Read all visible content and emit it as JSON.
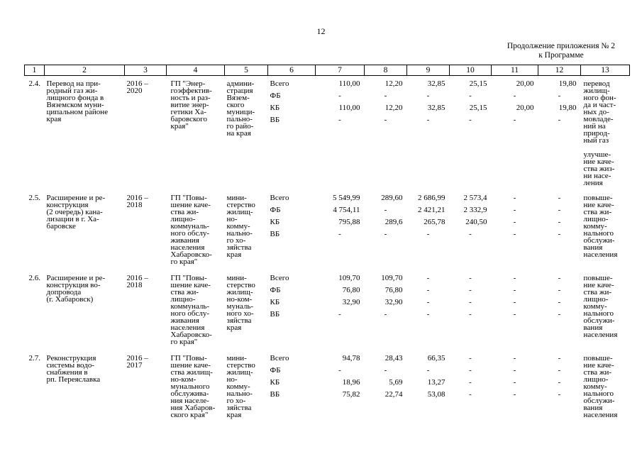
{
  "page": {
    "number": "12"
  },
  "continuation": {
    "line1": "Продолжение приложения № 2",
    "line2": "к Программе"
  },
  "headers": [
    "1",
    "2",
    "3",
    "4",
    "5",
    "6",
    "7",
    "8",
    "9",
    "10",
    "11",
    "12",
    "13"
  ],
  "rows": [
    {
      "num": "2.4.",
      "name": "Перевод на при-\nродный газ жи-\nлищного фонда в\nВяземском муни-\nципальном районе\nкрая",
      "period": "2016 –\n2020",
      "program": "ГП \"Энер-\nгоэффектив-\nность и раз-\nвитие энер-\nгетики Ха-\nбаровского\nкрая\"",
      "executor": "админи-\nстрация\nВязем-\nского\nмуници-\nпально-\nго райо-\nна края",
      "fin": [
        {
          "src": "Всего",
          "v7": "110,00",
          "v8": "12,20",
          "v9": "32,85",
          "v10": "25,15",
          "v11": "20,00",
          "v12": "19,80"
        },
        {
          "src": "ФБ",
          "v7": "-",
          "v8": "-",
          "v9": "-",
          "v10": "-",
          "v11": "-",
          "v12": "-"
        },
        {
          "src": "КБ",
          "v7": "110,00",
          "v8": "12,20",
          "v9": "32,85",
          "v10": "25,15",
          "v11": "20,00",
          "v12": "19,80"
        },
        {
          "src": "ВБ",
          "v7": "-",
          "v8": "-",
          "v9": "-",
          "v10": "-",
          "v11": "-",
          "v12": "-"
        }
      ],
      "result1": "перевод\nжилищ-\nного фон-\nда и част-\nных до-\nмовладе-\nний на\nприрод-\nный газ",
      "result2": "улучше-\nние каче-\nства жиз-\nни насе-\nления"
    },
    {
      "num": "2.5.",
      "name": "Расширение и ре-\nконструкция\n(2 очередь) кана-\nлизации в г. Ха-\nбаровске",
      "period": "2016 –\n2018",
      "program": "ГП \"Повы-\nшение каче-\nства жи-\nлищно-\nкоммуналь-\nного обслу-\nживания\nнаселения\nХабаровско-\nго края\"",
      "executor": "мини-\nстерство\nжилищ-\nно-\nкомму-\nнально-\nго хо-\nзяйства\nкрая",
      "fin": [
        {
          "src": "Всего",
          "v7": "5 549,99",
          "v8": "289,60",
          "v9": "2 686,99",
          "v10": "2 573,4",
          "v11": "-",
          "v12": "-"
        },
        {
          "src": "ФБ",
          "v7": "4 754,11",
          "v8": "-",
          "v9": "2 421,21",
          "v10": "2 332,9",
          "v11": "-",
          "v12": "-"
        },
        {
          "src": "КБ",
          "v7": "795,88",
          "v8": "289,6",
          "v9": "265,78",
          "v10": "240,50",
          "v11": "-",
          "v12": "-"
        },
        {
          "src": "ВБ",
          "v7": "-",
          "v8": "-",
          "v9": "-",
          "v10": "-",
          "v11": "-",
          "v12": "-"
        }
      ],
      "result1": "повыше-\nние каче-\nства жи-\nлищно-\nкомму-\nнального\nобслужи-\nвания\nнаселения",
      "result2": ""
    },
    {
      "num": "2.6.",
      "name": "Расширение и ре-\nконструкция во-\nдопровода\n(г. Хабаровск)",
      "period": "2016 –\n2018",
      "program": "ГП \"Повы-\nшение каче-\nства жи-\nлищно-\nкоммуналь-\nного обслу-\nживания\nнаселения\nХабаровско-\nго края\"",
      "executor": "мини-\nстерство\nжилищ-\nно-ком-\nмуналь-\nного хо-\nзяйства\nкрая",
      "fin": [
        {
          "src": "Всего",
          "v7": "109,70",
          "v8": "109,70",
          "v9": "-",
          "v10": "-",
          "v11": "-",
          "v12": "-"
        },
        {
          "src": "ФБ",
          "v7": "76,80",
          "v8": "76,80",
          "v9": "-",
          "v10": "-",
          "v11": "-",
          "v12": "-"
        },
        {
          "src": "КБ",
          "v7": "32,90",
          "v8": "32,90",
          "v9": "-",
          "v10": "-",
          "v11": "-",
          "v12": "-"
        },
        {
          "src": "ВБ",
          "v7": "-",
          "v8": "-",
          "v9": "-",
          "v10": "-",
          "v11": "-",
          "v12": "-"
        }
      ],
      "result1": "повыше-\nние каче-\nства жи-\nлищно-\nкомму-\nнального\nобслужи-\nвания\nнаселения",
      "result2": ""
    },
    {
      "num": "2.7.",
      "name": "Реконструкция\nсистемы водо-\nснабжения в\nрп. Переяславка",
      "period": "2016 –\n2017",
      "program": "ГП \"Повы-\nшение каче-\nства жилищ-\nно-ком-\nмунального\nобслужива-\nния населе-\nния Хабаров-\nского края\"",
      "executor": "мини-\nстерство\nжилищ-\nно-\nкомму-\nнально-\nго хо-\nзяйства\nкрая",
      "fin": [
        {
          "src": "Всего",
          "v7": "94,78",
          "v8": "28,43",
          "v9": "66,35",
          "v10": "-",
          "v11": "-",
          "v12": "-"
        },
        {
          "src": "ФБ",
          "v7": "-",
          "v8": "-",
          "v9": "-",
          "v10": "-",
          "v11": "-",
          "v12": "-"
        },
        {
          "src": "КБ",
          "v7": "18,96",
          "v8": "5,69",
          "v9": "13,27",
          "v10": "-",
          "v11": "-",
          "v12": "-"
        },
        {
          "src": "ВБ",
          "v7": "75,82",
          "v8": "22,74",
          "v9": "53,08",
          "v10": "-",
          "v11": "-",
          "v12": "-"
        }
      ],
      "result1": "повыше-\nние каче-\nства жи-\nлищно-\nкомму-\nнального\nобслужи-\nвания\nнаселения",
      "result2": ""
    }
  ]
}
